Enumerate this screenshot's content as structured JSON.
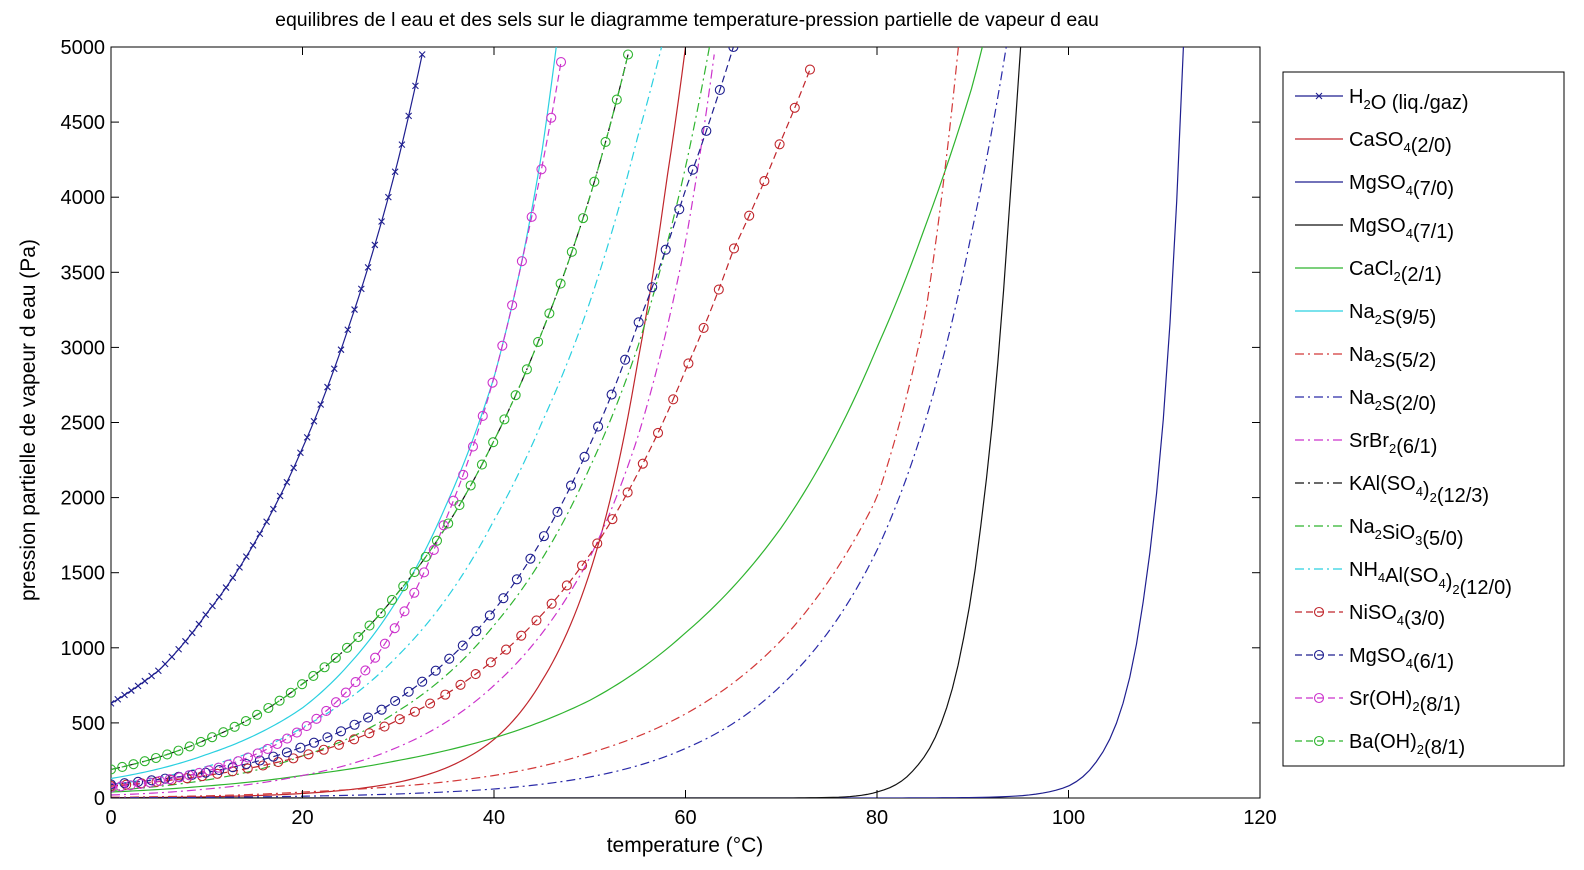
{
  "chart_data": {
    "type": "line",
    "title": "equilibres de l eau et des sels sur le diagramme temperature-pression partielle de vapeur d eau",
    "xlabel": "temperature (°C)",
    "ylabel": "pression partielle de vapeur d eau (Pa)",
    "xlim": [
      0,
      120
    ],
    "ylim": [
      0,
      5000
    ],
    "xticks": [
      0,
      20,
      40,
      60,
      80,
      100,
      120
    ],
    "yticks": [
      0,
      500,
      1000,
      1500,
      2000,
      2500,
      3000,
      3500,
      4000,
      4500,
      5000
    ],
    "xtick_labels": [
      "0",
      "20",
      "40",
      "60",
      "80",
      "100",
      "120"
    ],
    "ytick_labels": [
      "0",
      "500",
      "1000",
      "1500",
      "2000",
      "2500",
      "3000",
      "3500",
      "4000",
      "4500",
      "5000"
    ],
    "grid": false,
    "legend_position": "outside-right",
    "series": [
      {
        "name": "H2O (liq./gaz)",
        "legend_base": "H",
        "legend_parts": [
          [
            "H",
            ""
          ],
          [
            "2",
            "sub"
          ],
          [
            "O (liq./gaz)",
            ""
          ]
        ],
        "color": "#1f1f8f",
        "dash": "solid",
        "marker": "x",
        "x": [
          0,
          5,
          10,
          15,
          20,
          25,
          30,
          32.5
        ],
        "y": [
          630,
          850,
          1230,
          1700,
          2330,
          3170,
          4250,
          4950
        ]
      },
      {
        "name": "CaSO4(2/0)",
        "legend_parts": [
          [
            "CaSO",
            ""
          ],
          [
            "4",
            "sub"
          ],
          [
            "(2/0)",
            ""
          ]
        ],
        "color": "#c0262c",
        "dash": "solid",
        "marker": "none",
        "x": [
          0,
          10,
          20,
          30,
          35,
          40,
          45,
          50,
          55,
          58,
          60
        ],
        "y": [
          2,
          8,
          30,
          105,
          200,
          390,
          780,
          1500,
          2900,
          4100,
          5000
        ]
      },
      {
        "name": "MgSO4(7/0)",
        "legend_parts": [
          [
            "MgSO",
            ""
          ],
          [
            "4",
            "sub"
          ],
          [
            "(7/0)",
            ""
          ]
        ],
        "color": "#1f1f8f",
        "dash": "solid",
        "marker": "none",
        "x": [
          0,
          80,
          90,
          95,
          100,
          103,
          106,
          108,
          110,
          111,
          112
        ],
        "y": [
          0,
          0,
          3,
          15,
          80,
          250,
          700,
          1400,
          2600,
          3600,
          5000
        ]
      },
      {
        "name": "MgSO4(7/1)",
        "legend_parts": [
          [
            "MgSO",
            ""
          ],
          [
            "4",
            "sub"
          ],
          [
            "(7/1)",
            ""
          ]
        ],
        "color": "#111111",
        "dash": "solid",
        "marker": "none",
        "x": [
          0,
          70,
          76,
          80,
          84,
          87,
          89,
          91,
          93,
          94,
          95
        ],
        "y": [
          0,
          0,
          5,
          40,
          200,
          550,
          1050,
          1900,
          3200,
          4100,
          5000
        ]
      },
      {
        "name": "CaCl2(2/1)",
        "legend_parts": [
          [
            "CaCl",
            ""
          ],
          [
            "2",
            "sub"
          ],
          [
            "(2/1)",
            ""
          ]
        ],
        "color": "#2fb42f",
        "dash": "solid",
        "marker": "none",
        "x": [
          0,
          10,
          20,
          30,
          40,
          50,
          60,
          70,
          80,
          85,
          90,
          91
        ],
        "y": [
          40,
          80,
          150,
          250,
          400,
          650,
          1100,
          1800,
          3000,
          3800,
          4750,
          5000
        ]
      },
      {
        "name": "Na2S(9/5)",
        "legend_parts": [
          [
            "Na",
            ""
          ],
          [
            "2",
            "sub"
          ],
          [
            "S(9/5)",
            ""
          ]
        ],
        "color": "#2ad0e0",
        "dash": "solid",
        "marker": "none",
        "x": [
          0,
          10,
          20,
          25,
          30,
          35,
          40,
          43,
          45,
          46.5
        ],
        "y": [
          130,
          290,
          600,
          900,
          1330,
          1950,
          2800,
          3600,
          4300,
          5000
        ]
      },
      {
        "name": "Na2S(5/2)",
        "legend_parts": [
          [
            "Na",
            ""
          ],
          [
            "2",
            "sub"
          ],
          [
            "S(5/2)",
            ""
          ]
        ],
        "color": "#d23838",
        "dash": "dashdot",
        "marker": "none",
        "x": [
          0,
          20,
          40,
          50,
          60,
          70,
          80,
          85,
          88.5
        ],
        "y": [
          5,
          40,
          150,
          300,
          560,
          1050,
          2000,
          3200,
          5000
        ]
      },
      {
        "name": "Na2S(2/0)",
        "legend_parts": [
          [
            "Na",
            ""
          ],
          [
            "2",
            "sub"
          ],
          [
            "S(2/0)",
            ""
          ]
        ],
        "color": "#2a2aa8",
        "dash": "dashdot",
        "marker": "none",
        "x": [
          0,
          20,
          40,
          50,
          60,
          70,
          80,
          85,
          90,
          93.5
        ],
        "y": [
          1,
          12,
          60,
          140,
          330,
          750,
          1650,
          2500,
          3800,
          5000
        ]
      },
      {
        "name": "SrBr2(6/1)",
        "legend_parts": [
          [
            "SrBr",
            ""
          ],
          [
            "2",
            "sub"
          ],
          [
            "(6/1)",
            ""
          ]
        ],
        "color": "#cc33cc",
        "dash": "dashdot",
        "marker": "none",
        "x": [
          0,
          10,
          20,
          30,
          40,
          50,
          55,
          60,
          63
        ],
        "y": [
          20,
          60,
          150,
          340,
          750,
          1600,
          2400,
          3700,
          4950
        ]
      },
      {
        "name": "KAl(SO4)2(12/3)",
        "legend_parts": [
          [
            "KAl(SO",
            ""
          ],
          [
            "4",
            "sub"
          ],
          [
            ")",
            ""
          ],
          [
            "2",
            "sub"
          ],
          [
            "(12/3)",
            ""
          ]
        ],
        "color": "#111111",
        "dash": "dashdot",
        "marker": "none",
        "x": [
          0,
          10,
          20,
          30,
          40,
          45,
          50,
          54
        ],
        "y": [
          190,
          390,
          760,
          1370,
          2380,
          3100,
          4000,
          4950
        ]
      },
      {
        "name": "Na2SiO3(5/0)",
        "legend_parts": [
          [
            "Na",
            ""
          ],
          [
            "2",
            "sub"
          ],
          [
            "SiO",
            ""
          ],
          [
            "3",
            "sub"
          ],
          [
            "(5/0)",
            ""
          ]
        ],
        "color": "#2fb42f",
        "dash": "dashdot",
        "marker": "none",
        "x": [
          0,
          10,
          20,
          30,
          40,
          50,
          55,
          60,
          62.5
        ],
        "y": [
          50,
          120,
          280,
          580,
          1150,
          2200,
          3000,
          4200,
          5000
        ]
      },
      {
        "name": "NH4Al(SO4)2(12/0)",
        "legend_parts": [
          [
            "NH",
            ""
          ],
          [
            "4",
            "sub"
          ],
          [
            "Al(SO",
            ""
          ],
          [
            "4",
            "sub"
          ],
          [
            ")",
            ""
          ],
          [
            "2",
            "sub"
          ],
          [
            "(12/0)",
            ""
          ]
        ],
        "color": "#2ad0e0",
        "dash": "dashdot",
        "marker": "none",
        "x": [
          0,
          10,
          20,
          30,
          40,
          45,
          50,
          55,
          57.5
        ],
        "y": [
          90,
          210,
          470,
          950,
          1850,
          2500,
          3300,
          4400,
          5000
        ]
      },
      {
        "name": "NiSO4(3/0)",
        "legend_parts": [
          [
            "NiSO",
            ""
          ],
          [
            "4",
            "sub"
          ],
          [
            "(3/0)",
            ""
          ]
        ],
        "color": "#c0262c",
        "dash": "dashed",
        "marker": "o",
        "x": [
          0,
          10,
          20,
          30,
          40,
          50,
          55,
          60,
          65,
          70,
          73
        ],
        "y": [
          80,
          150,
          280,
          520,
          920,
          1620,
          2160,
          2850,
          3650,
          4380,
          4850
        ]
      },
      {
        "name": "MgSO4(6/1)",
        "legend_parts": [
          [
            "MgSO",
            ""
          ],
          [
            "4",
            "sub"
          ],
          [
            "(6/1)",
            ""
          ]
        ],
        "color": "#1f1f8f",
        "dash": "dashed",
        "marker": "o",
        "x": [
          0,
          10,
          20,
          30,
          40,
          45,
          50,
          55,
          60,
          63,
          65
        ],
        "y": [
          90,
          170,
          340,
          660,
          1250,
          1720,
          2350,
          3150,
          4050,
          4600,
          5000
        ]
      },
      {
        "name": "Sr(OH)2(8/1)",
        "legend_parts": [
          [
            "Sr(OH)",
            ""
          ],
          [
            "2",
            "sub"
          ],
          [
            "(8/1)",
            ""
          ]
        ],
        "color": "#cc33cc",
        "dash": "dashed",
        "marker": "o",
        "x": [
          0,
          10,
          20,
          30,
          35,
          40,
          43,
          45,
          47
        ],
        "y": [
          70,
          180,
          460,
          1170,
          1860,
          2800,
          3600,
          4200,
          4900
        ]
      },
      {
        "name": "Ba(OH)2(8/1)",
        "legend_parts": [
          [
            "Ba(OH)",
            ""
          ],
          [
            "2",
            "sub"
          ],
          [
            "(8/1)",
            ""
          ]
        ],
        "color": "#2fb42f",
        "dash": "dashed",
        "marker": "o",
        "x": [
          0,
          10,
          20,
          30,
          40,
          45,
          50,
          54
        ],
        "y": [
          190,
          390,
          760,
          1370,
          2380,
          3100,
          4000,
          4950
        ]
      }
    ]
  }
}
